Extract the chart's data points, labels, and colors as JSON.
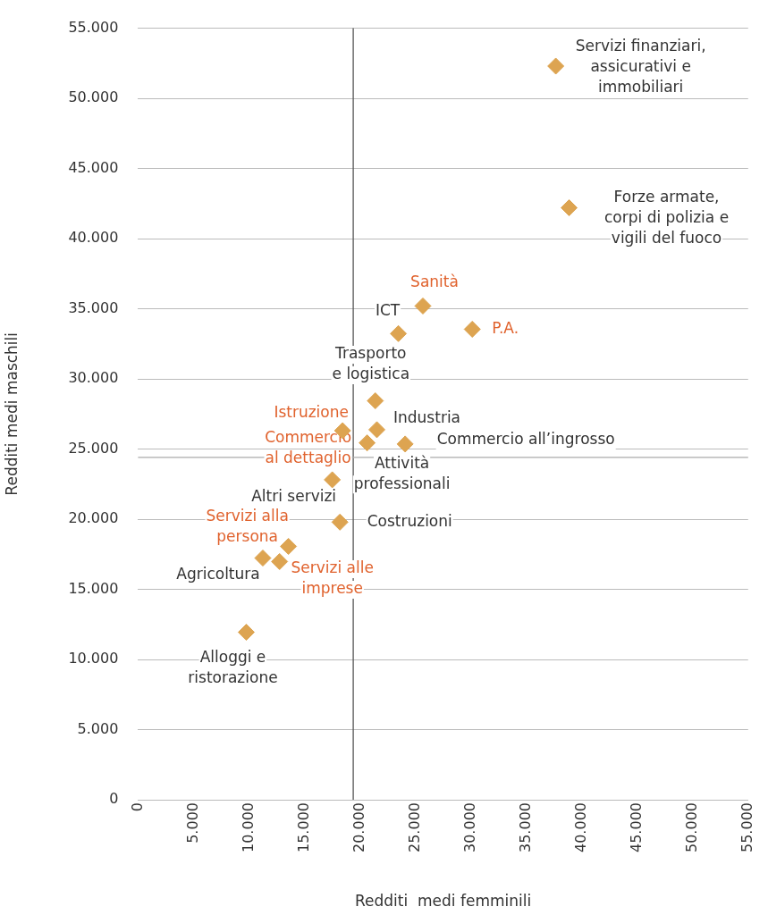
{
  "chart_data": {
    "type": "scatter",
    "xlabel": "Redditi  medi femminili",
    "ylabel": "Redditi medi maschili",
    "xlim": [
      0,
      55000
    ],
    "ylim": [
      0,
      55000
    ],
    "xticks": [
      0,
      {
        "value": 5000,
        "label": "5.000"
      },
      {
        "value": 10000,
        "label": "10.000"
      },
      {
        "value": 15000,
        "label": "15.000"
      },
      {
        "value": 20000,
        "label": "20.000"
      },
      {
        "value": 25000,
        "label": "25.000"
      },
      {
        "value": 30000,
        "label": "30.000"
      },
      {
        "value": 35000,
        "label": "35.000"
      },
      {
        "value": 40000,
        "label": "40.000"
      },
      {
        "value": 45000,
        "label": "45.000"
      },
      {
        "value": 50000,
        "label": "50.000"
      },
      {
        "value": 55000,
        "label": "55.000"
      }
    ],
    "yticks": [
      0,
      {
        "value": 5000,
        "label": "5.000"
      },
      {
        "value": 10000,
        "label": "10.000"
      },
      {
        "value": 15000,
        "label": "15.000"
      },
      {
        "value": 20000,
        "label": "20.000"
      },
      {
        "value": 25000,
        "label": "25.000"
      },
      {
        "value": 30000,
        "label": "30.000"
      },
      {
        "value": 35000,
        "label": "35.000"
      },
      {
        "value": 40000,
        "label": "40.000"
      },
      {
        "value": 45000,
        "label": "45.000"
      },
      {
        "value": 50000,
        "label": "50.000"
      },
      {
        "value": 55000,
        "label": "55.000"
      }
    ],
    "grid": "y",
    "marker": "diamond",
    "series": [
      {
        "color": "#dda451",
        "x": [
          37660,
          38860,
          23470,
          21390,
          21530,
          24080,
          17510,
          18200,
          11250,
          9760
        ],
        "values": [
          52300,
          42200,
          33230,
          28440,
          26380,
          25360,
          22810,
          19790,
          17230,
          11940
        ],
        "value_labels": [
          "Servizi finanziari, assicurativi e immobiliari",
          "Forze armate, corpi di polizia e vigili del fuoco",
          "ICT",
          "Trasporto e logistica",
          "Industria",
          "Commercio all’ingrosso",
          "Altri servizi",
          "Costruzioni",
          "Agricoltura",
          "Alloggi e ristorazione"
        ]
      },
      {
        "color": "#dda451",
        "x": [
          25680,
          30130,
          18440,
          20650,
          13560,
          12760
        ],
        "values": [
          35200,
          33540,
          26310,
          25440,
          18060,
          16980
        ],
        "value_labels": [
          "Sanità",
          "P.A.",
          "Istruzione",
          "Commercio al dettaglio",
          "Servizi alla persona",
          "Servizi alle imprese"
        ]
      }
    ],
    "ref_lines": [
      {
        "axis": "x",
        "value": 19400,
        "color": "#555555"
      },
      {
        "axis": "y",
        "value": 24400,
        "color": "#aaaaaa"
      }
    ],
    "annotations": [
      {
        "text": "Attività professionali",
        "x": 20650,
        "y": 25440
      }
    ]
  }
}
